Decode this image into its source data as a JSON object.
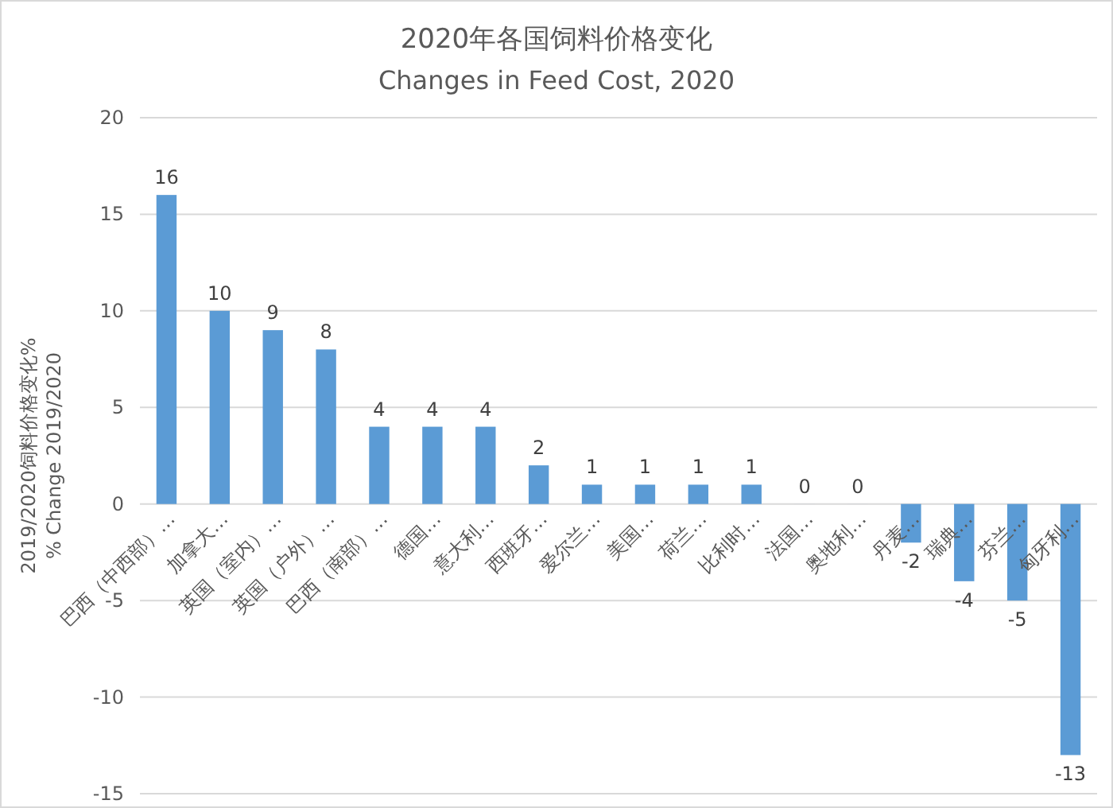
{
  "chart_data": {
    "type": "bar",
    "title": "2020年各国饲料价格变化",
    "subtitle": "Changes in Feed Cost, 2020",
    "ylabel": "2019/2020饲料价格变化%\n% Change 2019/2020",
    "categories": [
      "巴西（中西部）…",
      "加拿大…",
      "英国（室内）…",
      "英国（户外）…",
      "巴西（南部）…",
      "德国…",
      "意大利…",
      "西班牙…",
      "爱尔兰…",
      "美国…",
      "荷兰…",
      "比利时…",
      "法国…",
      "奥地利…",
      "丹麦…",
      "瑞典…",
      "芬兰…",
      "匈牙利…"
    ],
    "values": [
      16,
      10,
      9,
      8,
      4,
      4,
      4,
      2,
      1,
      1,
      1,
      1,
      0,
      0,
      -2,
      -4,
      -5,
      -13
    ],
    "color": "#5b9bd5",
    "ylim": [
      -15,
      20
    ],
    "yticks": [
      -15,
      -10,
      -5,
      0,
      5,
      10,
      15,
      20
    ],
    "grid": "y",
    "data_labels": true
  }
}
